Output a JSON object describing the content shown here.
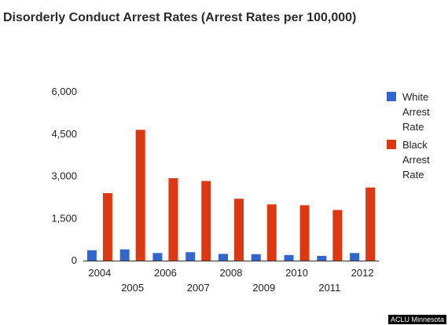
{
  "colors": {
    "white_series": "#3366cc",
    "black_series": "#dc3912",
    "axis": "#333333",
    "badge_bg": "#000000"
  },
  "chart_data": {
    "type": "bar",
    "title": "Disorderly Conduct Arrest Rates (Arrest Rates per 100,000)",
    "categories": [
      "2004",
      "2005",
      "2006",
      "2007",
      "2008",
      "2009",
      "2010",
      "2011",
      "2012"
    ],
    "series": [
      {
        "name": "White Arrest Rate",
        "values": [
          370,
          400,
          270,
          300,
          240,
          230,
          200,
          170,
          270
        ]
      },
      {
        "name": "Black Arrest Rate",
        "values": [
          2400,
          4650,
          2930,
          2830,
          2200,
          2000,
          1970,
          1800,
          2600
        ]
      }
    ],
    "yticks": [
      "0",
      "1,500",
      "3,000",
      "4,500",
      "6,000"
    ],
    "ylim": [
      0,
      6000
    ],
    "grid": false,
    "legend_position": "right",
    "xlabel": "",
    "ylabel": ""
  },
  "source": "ACLU Minnesota"
}
